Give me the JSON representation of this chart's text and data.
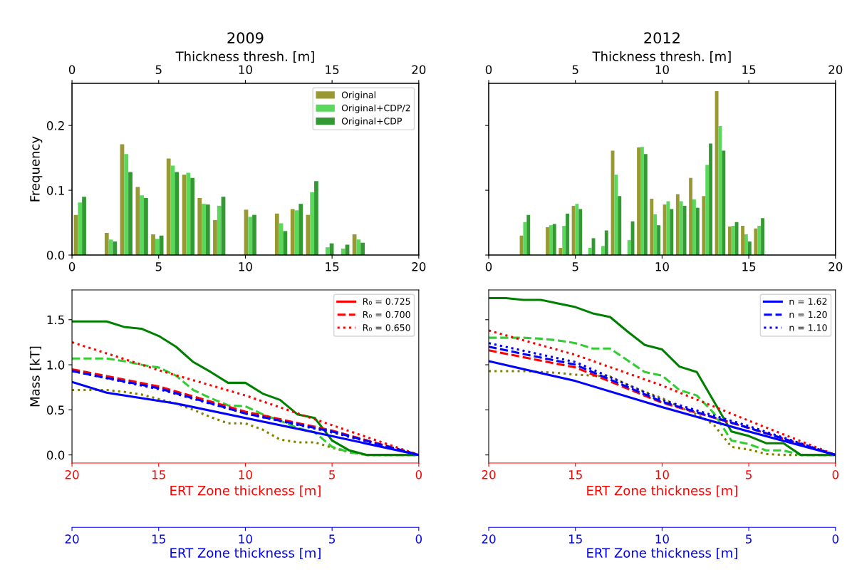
{
  "chart_data": [
    {
      "type": "bar",
      "title": "2009",
      "ylabel": "Frequency",
      "x2label": "Thickness thresh. [m]",
      "legend": "top right",
      "x": [
        0.46,
        2.24,
        3.13,
        4.03,
        4.92,
        5.81,
        6.71,
        7.6,
        8.49,
        10.28,
        12.06,
        12.96,
        13.85,
        14.74,
        15.64,
        16.53
      ],
      "xlim": [
        0,
        20
      ],
      "xticks": [
        0,
        5,
        10,
        15,
        20
      ],
      "x2lim": [
        0,
        20
      ],
      "x2ticks": [
        0,
        5,
        10,
        15,
        20
      ],
      "ylim": [
        0,
        0.265
      ],
      "yticks": [
        {
          "value": 0,
          "label": "0.0"
        },
        {
          "value": 0.1,
          "label": "0.1"
        },
        {
          "value": 0.2,
          "label": "0.2"
        }
      ],
      "series": [
        {
          "name": "Original",
          "color": "#999933",
          "values": [
            0.062,
            0.034,
            0.171,
            0.105,
            0.032,
            0.149,
            0.124,
            0.088,
            0.054,
            0.07,
            0.064,
            0.071,
            0.062,
            null,
            null,
            0.032
          ]
        },
        {
          "name": "Original+CDP/2",
          "color": "#5bd75b",
          "values": [
            0.081,
            0.024,
            0.156,
            0.092,
            0.025,
            0.138,
            0.127,
            0.079,
            0.076,
            0.059,
            0.049,
            0.069,
            0.097,
            0.012,
            0.01,
            0.024
          ]
        },
        {
          "name": "Original+CDP",
          "color": "#339933",
          "values": [
            0.09,
            0.021,
            0.128,
            0.088,
            0.03,
            0.128,
            0.119,
            0.078,
            0.09,
            0.062,
            0.037,
            0.079,
            0.114,
            0.018,
            0.016,
            0.019
          ]
        }
      ]
    },
    {
      "type": "bar",
      "title": "2012",
      "x2label": "Thickness thresh. [m]",
      "tick_labels": "x",
      "x": [
        2.09,
        3.59,
        4.34,
        5.09,
        5.84,
        6.59,
        7.35,
        8.1,
        8.85,
        9.6,
        10.35,
        11.1,
        11.85,
        12.6,
        13.35,
        14.1,
        14.85,
        15.6
      ],
      "xlim": [
        0,
        20
      ],
      "xticks": [
        0,
        5,
        10,
        15,
        20
      ],
      "x2lim": [
        0,
        20
      ],
      "x2ticks": [
        0,
        5,
        10,
        15,
        20
      ],
      "ylim": [
        0,
        0.265
      ],
      "yticks": [
        {
          "value": 0,
          "label": null
        },
        {
          "value": 0.1,
          "label": null
        },
        {
          "value": 0.2,
          "label": null
        }
      ],
      "series": [
        {
          "color": "#999933",
          "values": [
            0.03,
            0.043,
            0.011,
            0.076,
            null,
            null,
            0.161,
            null,
            0.166,
            0.087,
            0.078,
            0.094,
            0.119,
            0.091,
            0.253,
            0.044,
            0.045,
            0.041
          ]
        },
        {
          "color": "#5bd75b",
          "values": [
            0.051,
            0.046,
            0.045,
            0.079,
            0.011,
            0.014,
            0.124,
            0.023,
            0.167,
            0.063,
            0.083,
            0.083,
            0.086,
            0.139,
            0.199,
            0.045,
            0.032,
            0.045
          ]
        },
        {
          "color": "#339933",
          "values": [
            0.062,
            0.048,
            0.064,
            0.071,
            0.026,
            0.038,
            0.091,
            0.052,
            0.156,
            0.046,
            0.071,
            0.076,
            0.073,
            0.172,
            0.161,
            0.051,
            0.021,
            0.057
          ]
        }
      ]
    },
    {
      "type": "line",
      "ylabel": "Mass [kT]",
      "legend": "top right",
      "xlabel": "ERT Zone thickness [m]",
      "x2label": "ERT Zone thickness [m]",
      "xlim": [
        20,
        0
      ],
      "xticks": [
        20,
        15,
        10,
        5,
        0
      ],
      "x2lim": [
        20,
        0
      ],
      "x2ticks": [
        20,
        15,
        10,
        5,
        0
      ],
      "ylim": [
        -0.09,
        1.83
      ],
      "yticks": [
        {
          "value": 0,
          "label": "0.0"
        },
        {
          "value": 0.5,
          "label": "0.5"
        },
        {
          "value": 1,
          "label": "1.0"
        },
        {
          "value": 1.5,
          "label": "1.5"
        }
      ],
      "series": [
        {
          "color": "#808000",
          "line_style": "dotted",
          "x": [
            20,
            18,
            17,
            16,
            15,
            14,
            13,
            12,
            11,
            10,
            9,
            8,
            7,
            6,
            5,
            4,
            3,
            0
          ],
          "values": [
            0.72,
            0.72,
            0.7,
            0.67,
            0.62,
            0.57,
            0.5,
            0.42,
            0.35,
            0.35,
            0.28,
            0.17,
            0.14,
            0.14,
            0.08,
            0.03,
            0,
            0
          ]
        },
        {
          "color": "#32cd32",
          "line_style": "dashed",
          "x": [
            20,
            18,
            17,
            16,
            15,
            14,
            13,
            12,
            11,
            10,
            9,
            8,
            7,
            6,
            5,
            4,
            3,
            0
          ],
          "values": [
            1.07,
            1.07,
            1.04,
            1.0,
            0.97,
            0.88,
            0.72,
            0.63,
            0.55,
            0.54,
            0.45,
            0.38,
            0.3,
            0.25,
            0.09,
            0.03,
            0,
            0
          ]
        },
        {
          "color": "#008000",
          "line_style": "solid",
          "x": [
            20,
            18,
            17,
            16,
            15,
            14,
            13,
            12,
            11,
            10,
            9,
            8,
            7,
            6,
            5,
            4,
            3,
            0
          ],
          "values": [
            1.48,
            1.48,
            1.42,
            1.4,
            1.32,
            1.2,
            1.03,
            0.92,
            0.8,
            0.8,
            0.68,
            0.61,
            0.45,
            0.41,
            0.16,
            0.05,
            0,
            0
          ]
        },
        {
          "name": "R₀ = 0.725",
          "color": "#ff0000",
          "line_style": "solid"
        },
        {
          "name": "R₀ = 0.700",
          "color": "#ff0000",
          "line_style": "dashed",
          "x": [
            20,
            15,
            10,
            5,
            0
          ],
          "values": [
            0.95,
            0.76,
            0.48,
            0.27,
            0
          ]
        },
        {
          "name": "R₀ = 0.650",
          "color": "#ff0000",
          "line_style": "dotted",
          "x": [
            20,
            15,
            10,
            5,
            0
          ],
          "values": [
            1.25,
            0.94,
            0.66,
            0.33,
            0
          ]
        },
        {
          "color": "#0000ff",
          "line_style": "solid",
          "x": [
            20,
            18,
            14,
            10,
            6,
            0
          ],
          "values": [
            0.81,
            0.69,
            0.57,
            0.41,
            0.25,
            0
          ]
        },
        {
          "color": "#0000ff",
          "line_style": "dashed",
          "x": [
            20,
            15,
            10,
            5,
            0
          ],
          "values": [
            0.93,
            0.74,
            0.46,
            0.26,
            0
          ]
        },
        {
          "color": "#0000ff",
          "line_style": "dotted",
          "x": [
            20,
            15,
            10,
            5,
            0
          ],
          "values": [
            0.93,
            0.73,
            0.46,
            0.25,
            0
          ]
        }
      ]
    },
    {
      "type": "line",
      "legend": "top right",
      "tick_labels": "x",
      "xlabel": "ERT Zone thickness [m]",
      "x2label": "ERT Zone thickness [m]",
      "xlim": [
        20,
        0
      ],
      "xticks": [
        20,
        15,
        10,
        5,
        0
      ],
      "x2lim": [
        20,
        0
      ],
      "x2ticks": [
        20,
        15,
        10,
        5,
        0
      ],
      "ylim": [
        -0.09,
        1.83
      ],
      "yticks": [
        {
          "value": 0,
          "label": null
        },
        {
          "value": 0.5,
          "label": null
        },
        {
          "value": 1,
          "label": null
        },
        {
          "value": 1.5,
          "label": null
        }
      ],
      "series": [
        {
          "color": "#808000",
          "line_style": "dotted",
          "x": [
            20,
            18,
            17,
            16,
            15,
            14,
            13,
            12,
            11,
            10,
            9,
            8,
            7,
            6,
            5,
            4,
            3,
            0
          ],
          "values": [
            0.93,
            0.93,
            0.92,
            0.91,
            0.89,
            0.88,
            0.87,
            0.78,
            0.7,
            0.63,
            0.53,
            0.45,
            0.33,
            0.09,
            0.06,
            0.01,
            0,
            0
          ]
        },
        {
          "color": "#32cd32",
          "line_style": "dashed",
          "x": [
            20,
            18,
            17,
            16,
            15,
            14,
            13,
            12,
            11,
            10,
            9,
            8,
            7,
            6,
            5,
            4,
            3,
            2,
            0
          ],
          "values": [
            1.3,
            1.3,
            1.29,
            1.27,
            1.24,
            1.18,
            1.18,
            1.05,
            0.92,
            0.88,
            0.72,
            0.66,
            0.46,
            0.16,
            0.12,
            0.05,
            0.05,
            0,
            0
          ]
        },
        {
          "color": "#008000",
          "line_style": "solid",
          "x": [
            20,
            19,
            18,
            17,
            16,
            15,
            14,
            13,
            12,
            11,
            10,
            9,
            8,
            7,
            6,
            5,
            4,
            3,
            2,
            0
          ],
          "values": [
            1.74,
            1.74,
            1.72,
            1.72,
            1.68,
            1.64,
            1.57,
            1.53,
            1.37,
            1.22,
            1.17,
            0.98,
            0.92,
            0.59,
            0.26,
            0.21,
            0.13,
            0.13,
            0,
            0
          ]
        },
        {
          "color": "#ff0000",
          "line_style": "solid"
        },
        {
          "color": "#ff0000",
          "line_style": "dashed",
          "x": [
            20,
            15,
            10,
            5,
            0
          ],
          "values": [
            1.16,
            0.97,
            0.58,
            0.3,
            0
          ]
        },
        {
          "color": "#ff0000",
          "line_style": "dotted",
          "x": [
            20,
            15,
            10,
            5,
            0
          ],
          "values": [
            1.38,
            1.11,
            0.77,
            0.38,
            0
          ]
        },
        {
          "name": "n = 1.62",
          "color": "#0000ff",
          "line_style": "solid",
          "x": [
            20,
            15,
            10,
            5,
            0
          ],
          "values": [
            1.04,
            0.82,
            0.53,
            0.26,
            0
          ]
        },
        {
          "name": "n = 1.20",
          "color": "#0000ff",
          "line_style": "dashed",
          "x": [
            20,
            15,
            10,
            5,
            0
          ],
          "values": [
            1.2,
            1.0,
            0.59,
            0.3,
            0
          ]
        },
        {
          "name": "n = 1.10",
          "color": "#0000ff",
          "line_style": "dotted",
          "x": [
            20,
            15,
            10,
            5,
            0
          ],
          "values": [
            1.24,
            1.03,
            0.61,
            0.32,
            0
          ]
        }
      ]
    }
  ]
}
